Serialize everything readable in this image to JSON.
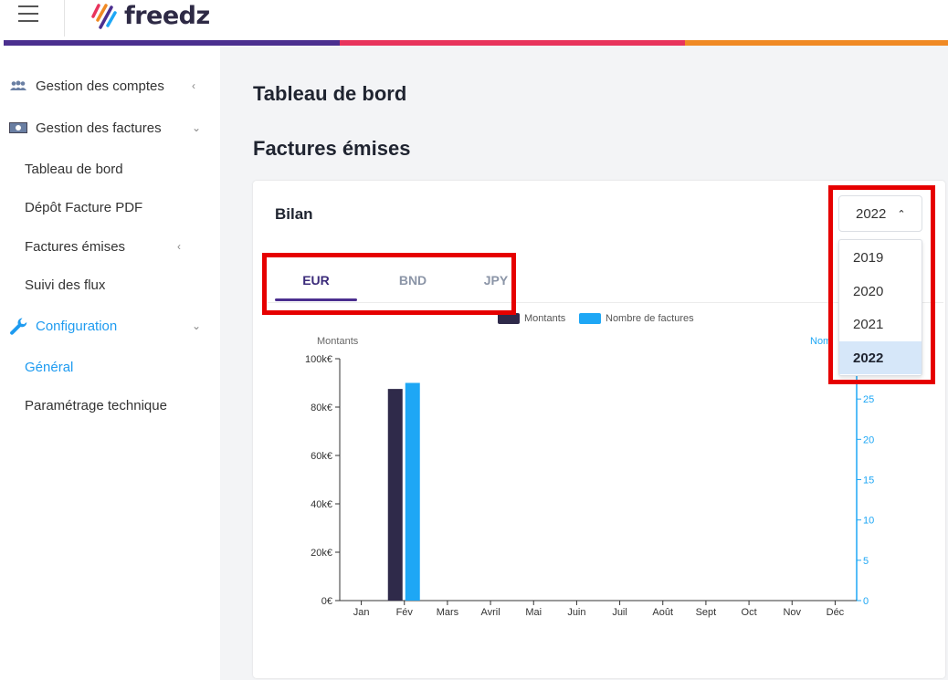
{
  "header": {
    "logo_text": "freedz"
  },
  "sidebar": {
    "items": [
      {
        "label": "Gestion des comptes",
        "chevron": "‹",
        "icon": "users-icon"
      },
      {
        "label": "Gestion des factures",
        "chevron": "⌄",
        "icon": "banknote-icon"
      }
    ],
    "sub_items": [
      {
        "label": "Tableau de bord"
      },
      {
        "label": "Dépôt Facture PDF"
      },
      {
        "label": "Factures émises",
        "chevron": "‹"
      },
      {
        "label": "Suivi des flux"
      }
    ],
    "config": {
      "label": "Configuration",
      "chevron": "⌄",
      "icon": "wrench-icon"
    },
    "config_items": [
      {
        "label": "Général"
      },
      {
        "label": "Paramétrage technique"
      }
    ]
  },
  "main": {
    "page_title": "Tableau de bord",
    "section_title": "Factures émises",
    "card_title": "Bilan",
    "tabs": [
      {
        "label": "EUR"
      },
      {
        "label": "BND"
      },
      {
        "label": "JPY"
      }
    ],
    "active_tab": "EUR",
    "year_select": {
      "value": "2022",
      "caret": "⌃",
      "options": [
        "2019",
        "2020",
        "2021",
        "2022"
      ]
    }
  },
  "colors": {
    "accent_purple": "#4b2f8f",
    "accent_pink": "#e8345c",
    "accent_orange": "#f08a24",
    "series_montants": "#2f2a4a",
    "series_nombre": "#1ea7f5",
    "highlight": "#e60000"
  },
  "chart_data": {
    "type": "bar",
    "categories": [
      "Jan",
      "Fév",
      "Mars",
      "Avril",
      "Mai",
      "Juin",
      "Juil",
      "Août",
      "Sept",
      "Oct",
      "Nov",
      "Déc"
    ],
    "series": [
      {
        "name": "Montants",
        "axis": "left",
        "values": [
          0,
          87500,
          0,
          0,
          0,
          0,
          0,
          0,
          0,
          0,
          0,
          0
        ]
      },
      {
        "name": "Nombre de factures",
        "axis": "right",
        "values": [
          0,
          27,
          0,
          0,
          0,
          0,
          0,
          0,
          0,
          0,
          0,
          0
        ]
      }
    ],
    "ylabel": "Montants",
    "y2label": "Nombre de factures",
    "y2label_visible": "Nom",
    "yticks": [
      "0€",
      "20k€",
      "40k€",
      "60k€",
      "80k€",
      "100k€"
    ],
    "y2ticks": [
      "0",
      "5",
      "10",
      "15",
      "20",
      "25"
    ],
    "ylim": [
      0,
      100000
    ],
    "y2lim": [
      0,
      30
    ],
    "legend": "top-center",
    "grid": false
  }
}
